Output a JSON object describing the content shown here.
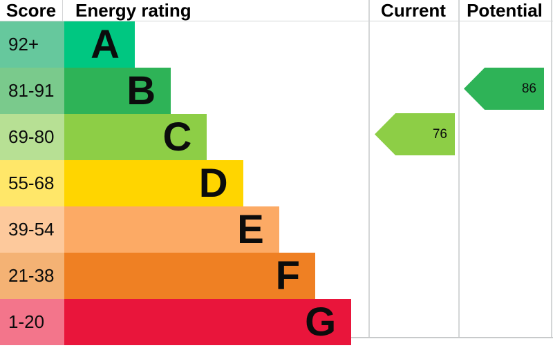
{
  "header": {
    "score": "Score",
    "energy_rating": "Energy rating",
    "current": "Current",
    "potential": "Potential"
  },
  "bands": [
    {
      "letter": "A",
      "range": "92+",
      "min": 92,
      "max": 100,
      "color": "#00c781",
      "tint": "#66c89d"
    },
    {
      "letter": "B",
      "range": "81-91",
      "min": 81,
      "max": 91,
      "color": "#2eb357",
      "tint": "#7aca8c"
    },
    {
      "letter": "C",
      "range": "69-80",
      "min": 69,
      "max": 80,
      "color": "#8dce46",
      "tint": "#b7e094"
    },
    {
      "letter": "D",
      "range": "55-68",
      "min": 55,
      "max": 68,
      "color": "#ffd500",
      "tint": "#ffe769"
    },
    {
      "letter": "E",
      "range": "39-54",
      "min": 39,
      "max": 54,
      "color": "#fcaa65",
      "tint": "#fdc99c"
    },
    {
      "letter": "F",
      "range": "21-38",
      "min": 21,
      "max": 38,
      "color": "#ef8023",
      "tint": "#f4b274"
    },
    {
      "letter": "G",
      "range": "1-20",
      "min": 1,
      "max": 20,
      "color": "#e9153b",
      "tint": "#f3758b"
    }
  ],
  "current": {
    "value": 76,
    "color": "#8dce46"
  },
  "potential": {
    "value": 86,
    "color": "#2eb357"
  },
  "grid_color": "#d4d6d7",
  "chart_data": {
    "type": "bar",
    "title": "Energy rating",
    "categories": [
      "A",
      "B",
      "C",
      "D",
      "E",
      "F",
      "G"
    ],
    "ranges": [
      "92+",
      "81-91",
      "69-80",
      "55-68",
      "39-54",
      "21-38",
      "1-20"
    ],
    "range_bounds": [
      [
        92,
        100
      ],
      [
        81,
        91
      ],
      [
        69,
        80
      ],
      [
        55,
        68
      ],
      [
        39,
        54
      ],
      [
        21,
        38
      ],
      [
        1,
        20
      ]
    ],
    "colors": [
      "#00c781",
      "#2eb357",
      "#8dce46",
      "#ffd500",
      "#fcaa65",
      "#ef8023",
      "#e9153b"
    ],
    "columns": [
      "Score",
      "Energy rating",
      "Current",
      "Potential"
    ],
    "markers": [
      {
        "label": "Current",
        "value": 76,
        "band": "C",
        "color": "#8dce46"
      },
      {
        "label": "Potential",
        "value": 86,
        "band": "B",
        "color": "#2eb357"
      }
    ],
    "score_range": [
      1,
      100
    ],
    "legend_position": "none",
    "grid": false
  }
}
